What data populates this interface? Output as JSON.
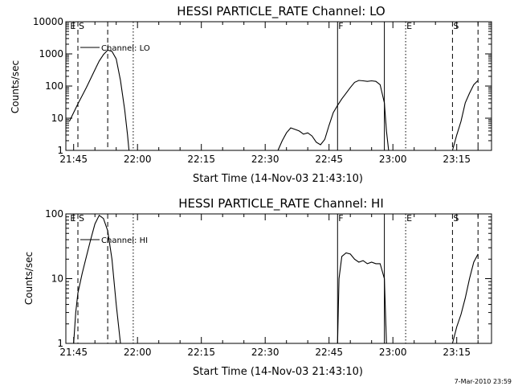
{
  "stamp": "7-Mar-2010 23:59",
  "chart_data": [
    {
      "type": "line",
      "title": "HESSI PARTICLE_RATE Channel: LO",
      "xlabel": "Start Time (14-Nov-03 21:43:10)",
      "ylabel": "Counts/sec",
      "yscale": "log",
      "xlim_minutes_of_day": [
        1303.17,
        1403.17
      ],
      "ylim": [
        1,
        10000
      ],
      "xticks": [
        "21:45",
        "22:00",
        "22:15",
        "22:30",
        "22:45",
        "23:00",
        "23:15"
      ],
      "yticks": [
        "1",
        "10",
        "100",
        "1000",
        "10000"
      ],
      "legend": {
        "label": "Channel: LO",
        "placement": "top-left"
      },
      "flags": [
        {
          "label": "E",
          "time": "21:44",
          "style": "none"
        },
        {
          "label": "S",
          "time": "21:46",
          "style": "dashed"
        },
        {
          "label": "",
          "time": "21:53",
          "style": "dashed"
        },
        {
          "label": "",
          "time": "21:59",
          "style": "dotted"
        },
        {
          "label": "F",
          "time": "22:47",
          "style": "solid"
        },
        {
          "label": "",
          "time": "22:58",
          "style": "solid"
        },
        {
          "label": "E",
          "time": "23:03",
          "style": "dotted"
        },
        {
          "label": "S",
          "time": "23:14",
          "style": "dashed"
        },
        {
          "label": "",
          "time": "23:20",
          "style": "dashed"
        }
      ],
      "series": [
        {
          "name": "",
          "points": [
            [
              "21:44",
              8
            ],
            [
              "21:45",
              15
            ],
            [
              "21:46",
              28
            ],
            [
              "21:47",
              50
            ],
            [
              "21:48",
              90
            ],
            [
              "21:49",
              170
            ],
            [
              "21:50",
              320
            ],
            [
              "21:51",
              600
            ],
            [
              "21:52",
              950
            ],
            [
              "21:53",
              1300
            ],
            [
              "21:54",
              1200
            ],
            [
              "21:55",
              700
            ],
            [
              "21:56",
              150
            ],
            [
              "21:57",
              18
            ],
            [
              "21:57:40",
              3
            ],
            [
              "21:58",
              1
            ]
          ]
        },
        {
          "name": "",
          "points": [
            [
              "22:33",
              1
            ],
            [
              "22:34",
              2
            ],
            [
              "22:35",
              3.5
            ],
            [
              "22:36",
              5
            ],
            [
              "22:37",
              4.5
            ],
            [
              "22:38",
              4
            ],
            [
              "22:39",
              3.2
            ],
            [
              "22:40",
              3.5
            ],
            [
              "22:41",
              2.8
            ],
            [
              "22:42",
              1.8
            ],
            [
              "22:43",
              1.5
            ],
            [
              "22:44",
              2.2
            ],
            [
              "22:45",
              6
            ],
            [
              "22:46",
              15
            ],
            [
              "22:47",
              25
            ],
            [
              "22:48",
              40
            ],
            [
              "22:49",
              60
            ],
            [
              "22:50",
              90
            ],
            [
              "22:51",
              130
            ],
            [
              "22:52",
              150
            ],
            [
              "22:53",
              145
            ],
            [
              "22:54",
              140
            ],
            [
              "22:55",
              145
            ],
            [
              "22:56",
              140
            ],
            [
              "22:57",
              110
            ],
            [
              "22:58",
              30
            ],
            [
              "22:58:30",
              4
            ],
            [
              "22:59",
              1
            ]
          ]
        },
        {
          "name": "",
          "points": [
            [
              "23:14",
              1
            ],
            [
              "23:15",
              3
            ],
            [
              "23:16",
              8
            ],
            [
              "23:17",
              30
            ],
            [
              "23:18",
              60
            ],
            [
              "23:19",
              110
            ],
            [
              "23:20",
              150
            ]
          ]
        }
      ]
    },
    {
      "type": "line",
      "title": "HESSI PARTICLE_RATE Channel: HI",
      "xlabel": "Start Time (14-Nov-03 21:43:10)",
      "ylabel": "Counts/sec",
      "yscale": "log",
      "xlim_minutes_of_day": [
        1303.17,
        1403.17
      ],
      "ylim": [
        1,
        100
      ],
      "xticks": [
        "21:45",
        "22:00",
        "22:15",
        "22:30",
        "22:45",
        "23:00",
        "23:15"
      ],
      "yticks": [
        "1",
        "10",
        "100"
      ],
      "legend": {
        "label": "Channel: HI",
        "placement": "top-left"
      },
      "flags": [
        {
          "label": "E",
          "time": "21:44",
          "style": "none"
        },
        {
          "label": "S",
          "time": "21:46",
          "style": "dashed"
        },
        {
          "label": "",
          "time": "21:53",
          "style": "dashed"
        },
        {
          "label": "",
          "time": "21:59",
          "style": "dotted"
        },
        {
          "label": "F",
          "time": "22:47",
          "style": "solid"
        },
        {
          "label": "",
          "time": "22:58",
          "style": "solid"
        },
        {
          "label": "E",
          "time": "23:03",
          "style": "dotted"
        },
        {
          "label": "S",
          "time": "23:14",
          "style": "dashed"
        },
        {
          "label": "",
          "time": "23:20",
          "style": "dashed"
        }
      ],
      "series": [
        {
          "name": "",
          "points": [
            [
              "21:45",
              1
            ],
            [
              "21:45:30",
              3
            ],
            [
              "21:46",
              6
            ],
            [
              "21:47",
              12
            ],
            [
              "21:48",
              22
            ],
            [
              "21:49",
              40
            ],
            [
              "21:50",
              70
            ],
            [
              "21:51",
              95
            ],
            [
              "21:52",
              85
            ],
            [
              "21:53",
              55
            ],
            [
              "21:54",
              20
            ],
            [
              "21:55",
              4
            ],
            [
              "21:56",
              1
            ]
          ]
        },
        {
          "name": "",
          "points": [
            [
              "22:47",
              1
            ],
            [
              "22:47:20",
              10
            ],
            [
              "22:48",
              22
            ],
            [
              "22:49",
              25
            ],
            [
              "22:50",
              24
            ],
            [
              "22:51",
              20
            ],
            [
              "22:52",
              18
            ],
            [
              "22:53",
              19
            ],
            [
              "22:54",
              17
            ],
            [
              "22:55",
              18
            ],
            [
              "22:56",
              17
            ],
            [
              "22:57",
              17
            ],
            [
              "22:58",
              10
            ],
            [
              "22:58:30",
              1
            ]
          ]
        },
        {
          "name": "",
          "points": [
            [
              "23:14",
              1
            ],
            [
              "23:15",
              1.8
            ],
            [
              "23:16",
              2.8
            ],
            [
              "23:17",
              5
            ],
            [
              "23:18",
              10
            ],
            [
              "23:19",
              18
            ],
            [
              "23:20",
              24
            ]
          ]
        }
      ]
    }
  ]
}
